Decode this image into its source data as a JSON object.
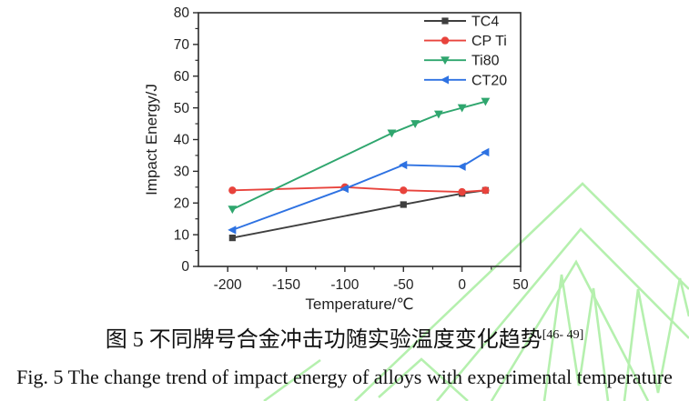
{
  "figure": {
    "caption_zh": "图 5 不同牌号合金冲击功随实验温度变化趋势",
    "caption_zh_ref": "[46- 49]",
    "caption_en": "Fig. 5 The change trend of impact energy of alloys with experimental temperature"
  },
  "watermark": {
    "color": "#b5f0ae"
  },
  "chart_data": {
    "type": "line",
    "title": "",
    "xlabel": "Temperature/℃",
    "ylabel": "Impact Energy/J",
    "xlim": [
      -225,
      50
    ],
    "ylim": [
      0,
      80
    ],
    "x_ticks": [
      -200,
      -150,
      -100,
      -50,
      0,
      50
    ],
    "y_ticks": [
      0,
      10,
      20,
      30,
      40,
      50,
      60,
      70,
      80
    ],
    "grid": false,
    "legend_position": "top-right",
    "axis_color": "#2b2b2b",
    "series": [
      {
        "name": "TC4",
        "color": "#3f3f3f",
        "marker": "square",
        "points": [
          [
            -196,
            9
          ],
          [
            -50,
            19.5
          ],
          [
            0,
            23
          ],
          [
            20,
            24
          ]
        ]
      },
      {
        "name": "CP Ti",
        "color": "#e8433c",
        "marker": "circle",
        "points": [
          [
            -196,
            24
          ],
          [
            -100,
            25
          ],
          [
            -50,
            24
          ],
          [
            0,
            23.5
          ],
          [
            20,
            24
          ]
        ]
      },
      {
        "name": "Ti80",
        "color": "#2fa66e",
        "marker": "triangle-down",
        "points": [
          [
            -196,
            18
          ],
          [
            -60,
            42
          ],
          [
            -40,
            45
          ],
          [
            -20,
            48
          ],
          [
            0,
            50
          ],
          [
            20,
            52
          ]
        ]
      },
      {
        "name": "CT20",
        "color": "#2e72e2",
        "marker": "triangle-left",
        "points": [
          [
            -196,
            11.5
          ],
          [
            -100,
            24.5
          ],
          [
            -50,
            32
          ],
          [
            0,
            31.5
          ],
          [
            20,
            36
          ]
        ]
      }
    ]
  }
}
